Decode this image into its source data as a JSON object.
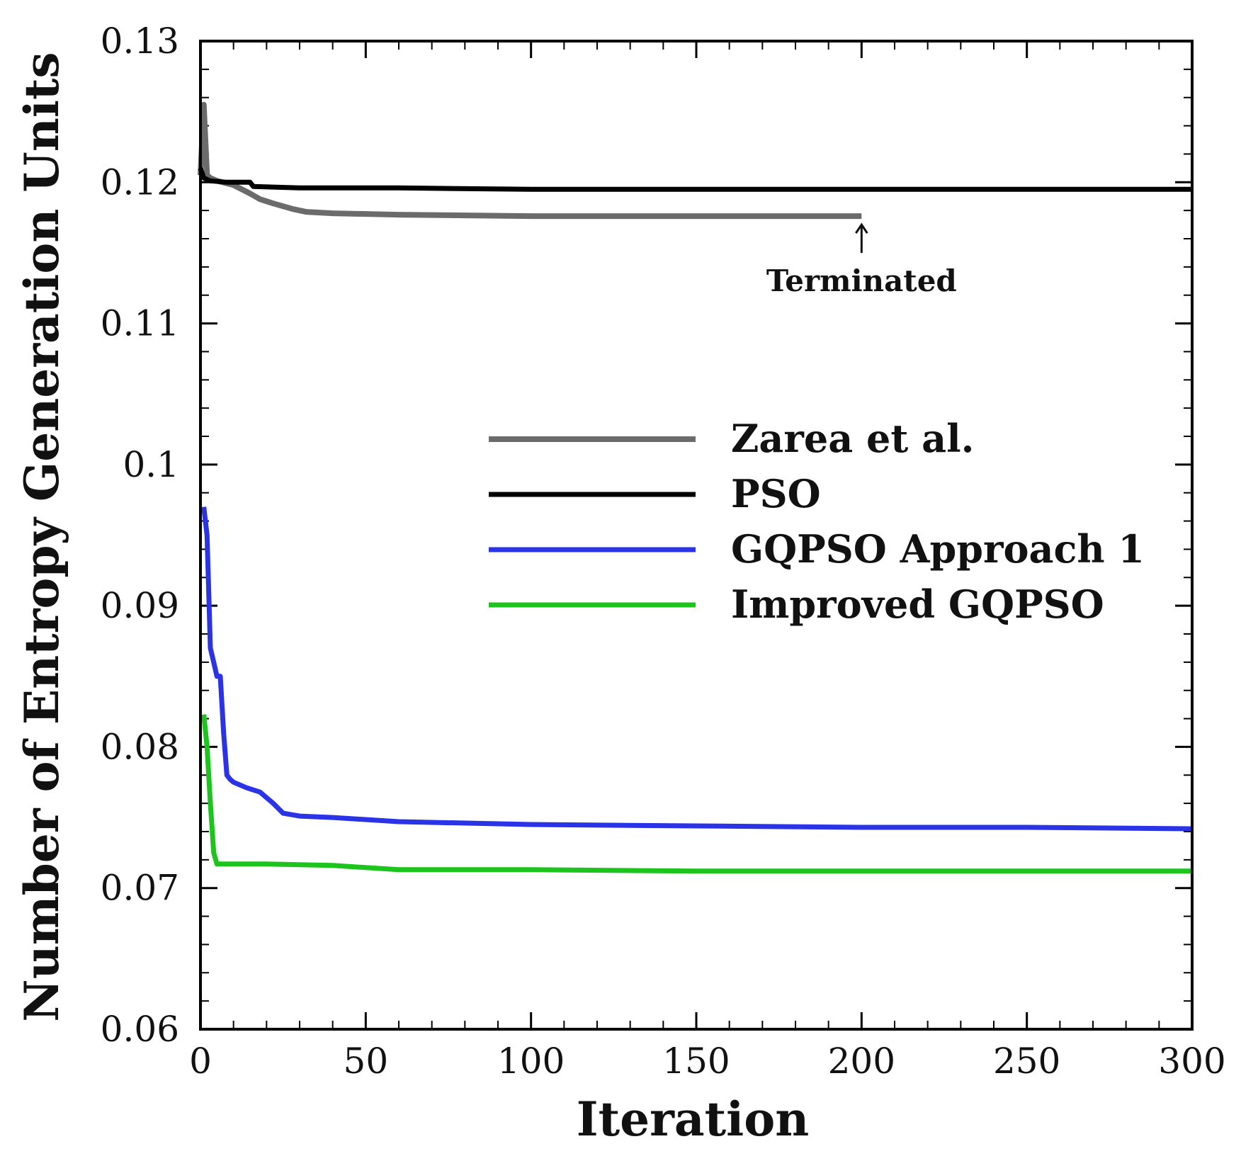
{
  "chart_data": {
    "type": "line",
    "title": "",
    "xlabel": "Iteration",
    "ylabel": "Number of Entropy Generation Units",
    "xlim": [
      0,
      300
    ],
    "ylim": [
      0.06,
      0.13
    ],
    "x_ticks": [
      0,
      50,
      100,
      150,
      200,
      250,
      300
    ],
    "x_tick_labels": [
      "0",
      "50",
      "100",
      "150",
      "200",
      "250",
      "300"
    ],
    "y_ticks": [
      0.06,
      0.07,
      0.08,
      0.09,
      0.1,
      0.11,
      0.12,
      0.13
    ],
    "y_tick_labels": [
      "0.06",
      "0.07",
      "0.08",
      "0.09",
      "0.1",
      "0.11",
      "0.12",
      "0.13"
    ],
    "grid": false,
    "legend_position": "center-right",
    "series": [
      {
        "name": "Zarea et al.",
        "color": "#6b6b6b",
        "x": [
          0,
          1,
          2,
          3,
          5,
          10,
          15,
          18,
          22,
          28,
          32,
          40,
          60,
          100,
          150,
          200
        ],
        "y": [
          0.1205,
          0.1255,
          0.1205,
          0.1203,
          0.1201,
          0.1198,
          0.1192,
          0.1188,
          0.1185,
          0.1181,
          0.1179,
          0.1178,
          0.1177,
          0.1176,
          0.1176,
          0.1176
        ]
      },
      {
        "name": "PSO",
        "color": "#000000",
        "x": [
          0,
          1,
          3,
          8,
          15,
          16,
          30,
          60,
          100,
          150,
          200,
          300
        ],
        "y": [
          0.121,
          0.1203,
          0.1201,
          0.12,
          0.12,
          0.1197,
          0.1196,
          0.1196,
          0.1195,
          0.1195,
          0.1195,
          0.1195
        ]
      },
      {
        "name": "GQPSO Approach 1",
        "color": "#2a33e6",
        "x": [
          1,
          2,
          3,
          4,
          5,
          6,
          7,
          8,
          9,
          10,
          14,
          18,
          22,
          25,
          30,
          40,
          60,
          100,
          150,
          200,
          250,
          300
        ],
        "y": [
          0.097,
          0.095,
          0.087,
          0.086,
          0.085,
          0.085,
          0.081,
          0.078,
          0.0777,
          0.0775,
          0.0771,
          0.0768,
          0.076,
          0.0753,
          0.0751,
          0.075,
          0.0747,
          0.0745,
          0.0744,
          0.0743,
          0.0743,
          0.0742
        ]
      },
      {
        "name": "Improved GQPSO",
        "color": "#1ec41e",
        "x": [
          1,
          2,
          3,
          4,
          5,
          8,
          20,
          40,
          60,
          100,
          150,
          200,
          300
        ],
        "y": [
          0.0823,
          0.08,
          0.076,
          0.0725,
          0.0717,
          0.0717,
          0.0717,
          0.0716,
          0.0713,
          0.0713,
          0.0712,
          0.0712,
          0.0712
        ]
      }
    ],
    "annotations": [
      {
        "text": "Terminated",
        "arrow_x": 200,
        "arrow_y": 0.1176
      }
    ]
  }
}
